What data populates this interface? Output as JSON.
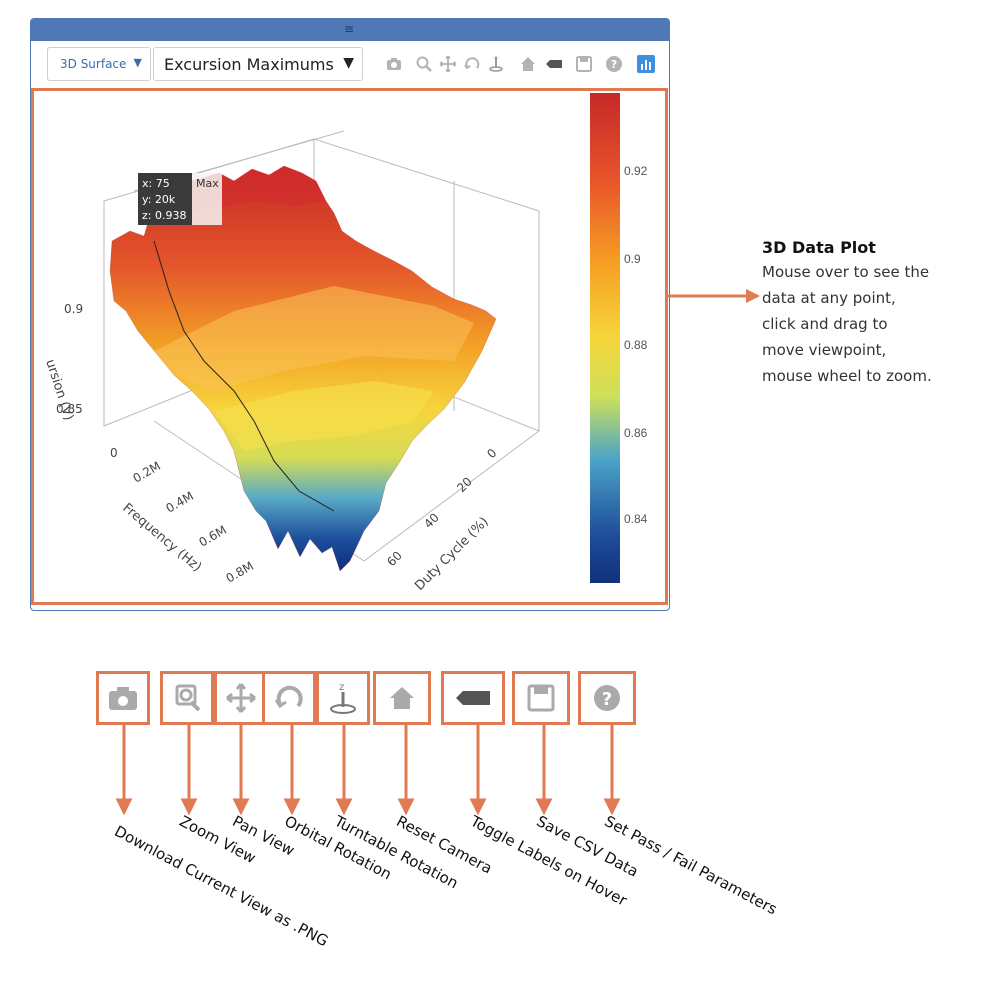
{
  "toolbar": {
    "chart_type": "3D Surface",
    "dataset": "Excursion Maximums",
    "chevron": "▼",
    "icons": [
      "camera-icon",
      "zoom-icon",
      "pan-icon",
      "orbit-icon",
      "turntable-icon",
      "home-icon",
      "tag-icon",
      "save-icon",
      "help-icon",
      "bar-chart-icon"
    ]
  },
  "plot": {
    "hover": {
      "x": "x: 75",
      "y": "y: 20k",
      "z": "z: 0.938",
      "tag": "Max"
    },
    "axes": {
      "z_title": "ursion (V)",
      "z_ticks": [
        "0.9",
        "0.85",
        "0"
      ],
      "freq_title": "Frequency (Hz)",
      "freq_ticks": [
        "0.2M",
        "0.4M",
        "0.6M",
        "0.8M"
      ],
      "duty_title": "Duty Cycle (%)",
      "duty_ticks": [
        "0",
        "20",
        "40",
        "60"
      ]
    },
    "colorbar": {
      "ticks": [
        "0.92",
        "0.9",
        "0.88",
        "0.86",
        "0.84"
      ],
      "stops": [
        "#c62828",
        "#e8552a",
        "#f6a023",
        "#f5d63a",
        "#cde05a",
        "#4aa3c8",
        "#1f4e9b",
        "#10307a"
      ]
    }
  },
  "annotation": {
    "title": "3D Data Plot",
    "body": [
      "Mouse over to see the",
      "data at any point,",
      "click and drag to",
      "move viewpoint,",
      "mouse wheel to zoom."
    ]
  },
  "legend": [
    {
      "icon": "camera-icon",
      "label": "Download Current View as .PNG"
    },
    {
      "icon": "zoom-icon",
      "label": "Zoom View"
    },
    {
      "icon": "pan-icon",
      "label": "Pan View"
    },
    {
      "icon": "orbit-icon",
      "label": "Orbital Rotation"
    },
    {
      "icon": "turntable-icon",
      "label": "Turntable Rotation"
    },
    {
      "icon": "home-icon",
      "label": "Reset Camera"
    },
    {
      "icon": "tag-icon",
      "label": "Toggle Labels on Hover"
    },
    {
      "icon": "save-icon",
      "label": "Save CSV Data"
    },
    {
      "icon": "help-icon",
      "label": "Set Pass / Fail Parameters"
    }
  ],
  "colors": {
    "accent": "#e07a52",
    "frame": "#4e78b6",
    "icon_gray": "#a8a8a8"
  }
}
